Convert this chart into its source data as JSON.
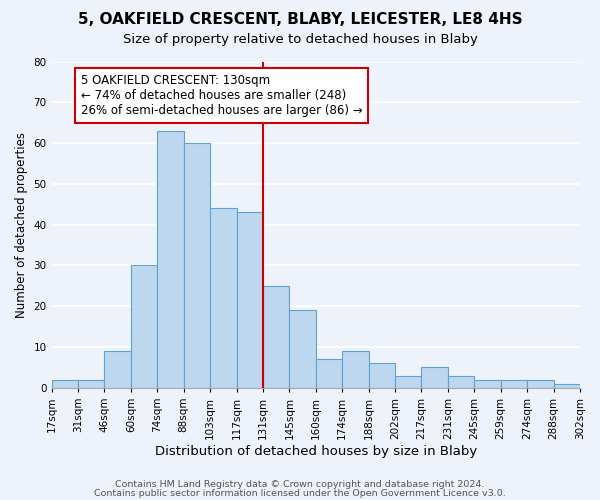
{
  "title1": "5, OAKFIELD CRESCENT, BLABY, LEICESTER, LE8 4HS",
  "title2": "Size of property relative to detached houses in Blaby",
  "xlabel": "Distribution of detached houses by size in Blaby",
  "ylabel": "Number of detached properties",
  "footer1": "Contains HM Land Registry data © Crown copyright and database right 2024.",
  "footer2": "Contains public sector information licensed under the Open Government Licence v3.0.",
  "bin_labels": [
    "17sqm",
    "31sqm",
    "46sqm",
    "60sqm",
    "74sqm",
    "88sqm",
    "103sqm",
    "117sqm",
    "131sqm",
    "145sqm",
    "160sqm",
    "174sqm",
    "188sqm",
    "202sqm",
    "217sqm",
    "231sqm",
    "245sqm",
    "259sqm",
    "274sqm",
    "288sqm",
    "302sqm"
  ],
  "bar_heights": [
    2,
    2,
    9,
    30,
    63,
    60,
    44,
    43,
    25,
    19,
    7,
    9,
    6,
    3,
    5,
    3,
    2,
    2,
    2,
    1
  ],
  "bar_color": "#bdd7ee",
  "bar_edge_color": "#5ba3d0",
  "property_line_x": 8,
  "property_line_color": "#cc0000",
  "annotation_line1": "5 OAKFIELD CRESCENT: 130sqm",
  "annotation_line2": "← 74% of detached houses are smaller (248)",
  "annotation_line3": "26% of semi-detached houses are larger (86) →",
  "annotation_box_color": "#ffffff",
  "annotation_box_edge_color": "#cc0000",
  "ylim": [
    0,
    80
  ],
  "background_color": "#eef2fa",
  "plot_background_color": "#eef2fa",
  "grid_color": "#ffffff",
  "title1_fontsize": 11,
  "title2_fontsize": 9.5,
  "xlabel_fontsize": 9.5,
  "ylabel_fontsize": 8.5,
  "tick_fontsize": 7.5,
  "annotation_fontsize": 8.5,
  "footer_fontsize": 6.8
}
